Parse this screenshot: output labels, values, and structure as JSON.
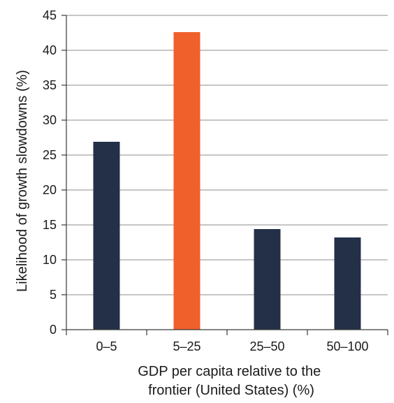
{
  "chart_data": {
    "type": "bar",
    "categories": [
      "0–5",
      "5–25",
      "25–50",
      "50–100"
    ],
    "values": [
      26.9,
      42.6,
      14.4,
      13.2
    ],
    "highlight_index": 1,
    "colors": {
      "default": "#233047",
      "highlight": "#f0602a",
      "grid": "#8c8c8c"
    },
    "xlabel": [
      "GDP per capita relative to the",
      "frontier (United States) (%)"
    ],
    "ylabel": "Likelihood  of growth slowdowns (%)",
    "ylim": [
      0,
      45
    ],
    "yticks": [
      0,
      5,
      10,
      15,
      20,
      25,
      30,
      35,
      40,
      45
    ],
    "grid": true
  }
}
